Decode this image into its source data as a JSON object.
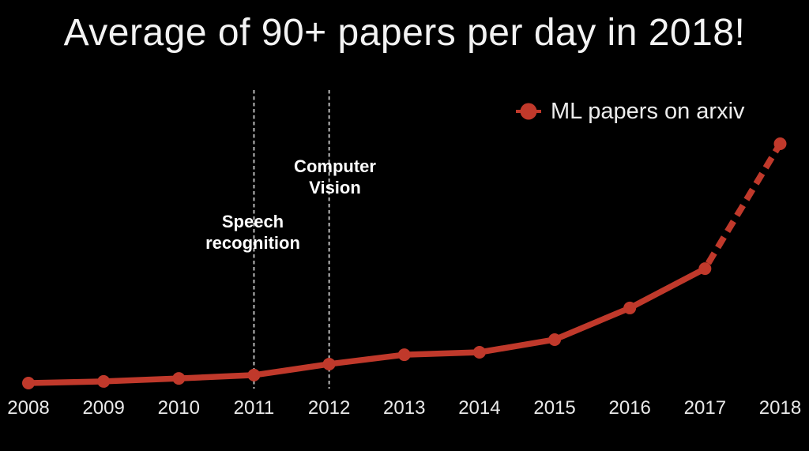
{
  "title": "Average of 90+ papers per day in 2018!",
  "legend": {
    "label": "ML papers on arxiv"
  },
  "annotations": [
    {
      "text": "Speech recognition",
      "lines": [
        "Speech",
        "recognition"
      ],
      "year": 2011
    },
    {
      "text": "Computer Vision",
      "lines": [
        "Computer",
        "Vision"
      ],
      "year": 2012
    }
  ],
  "colors": {
    "background": "#000000",
    "line": "#c0392b",
    "title_text": "#f3f3f3",
    "tick_text": "#e9e9e9",
    "annotation_text": "#ffffff",
    "guide_line": "#cccccc"
  },
  "chart_data": {
    "type": "line",
    "title": "Average of 90+ papers per day in 2018!",
    "xlabel": "",
    "ylabel": "",
    "x": [
      2008,
      2009,
      2010,
      2011,
      2012,
      2013,
      2014,
      2015,
      2016,
      2017,
      2018
    ],
    "x_tick_labels": [
      "2008",
      "2009",
      "2010",
      "2011",
      "2012",
      "2013",
      "2014",
      "2015",
      "2016",
      "2017",
      "2018"
    ],
    "series": [
      {
        "name": "ML papers on arxiv",
        "values_estimated_papers_per_day": [
          3,
          3.6,
          4.7,
          5.9,
          9.9,
          13.3,
          14.2,
          18.8,
          30.3,
          44.6,
          90
        ],
        "style": "solid with round markers; final segment 2017-2018 dashed (projection)"
      }
    ],
    "y_axis_visible": false,
    "grid": false,
    "legend_position": "upper right",
    "vertical_guides": [
      {
        "x": 2011,
        "label": "Speech recognition"
      },
      {
        "x": 2012,
        "label": "Computer Vision"
      }
    ]
  }
}
